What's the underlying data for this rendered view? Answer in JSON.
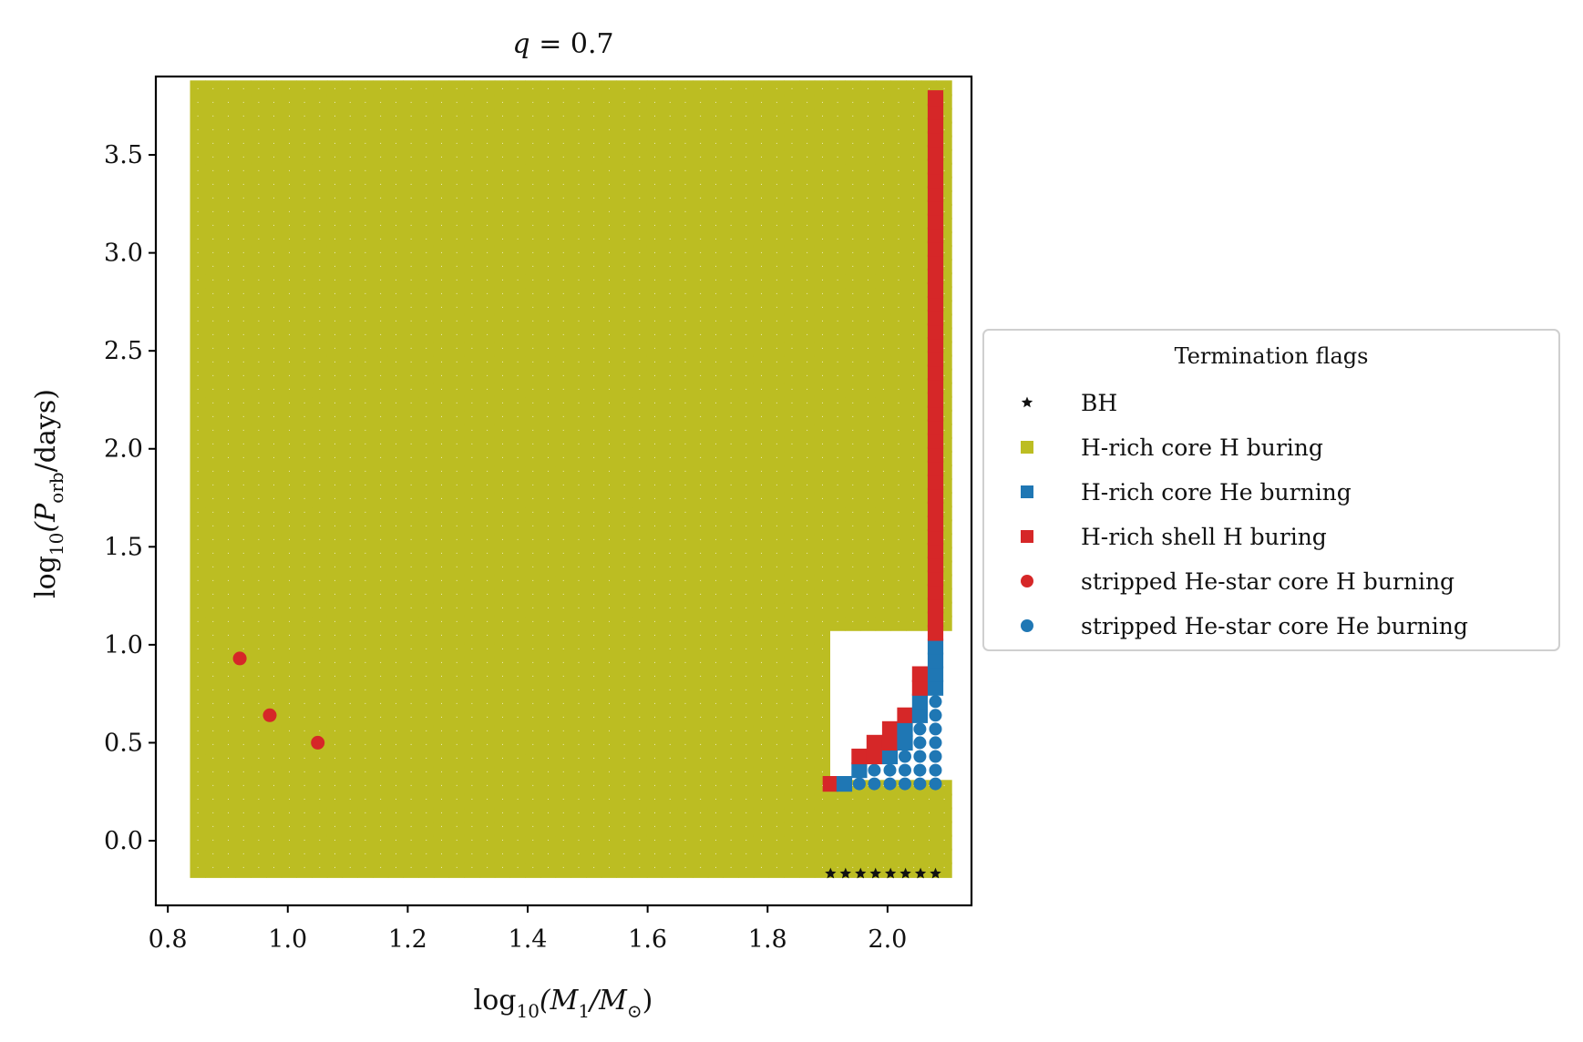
{
  "chart_data": {
    "type": "scatter",
    "title_prefix": "q",
    "title_value": "= 0.7",
    "xlabel_text": "log",
    "xlabel_sub": "10",
    "xlabel_rest": "(M",
    "xlabel_sub2": "1",
    "xlabel_rest2": "/M",
    "xlabel_sub3": "⊙",
    "xlabel_close": ")",
    "ylabel_text": "log",
    "ylabel_sub": "10",
    "ylabel_rest": "(P",
    "ylabel_sub2": "orb",
    "ylabel_close": "/days)",
    "xlim": [
      0.78,
      2.14
    ],
    "ylim": [
      -0.33,
      3.9
    ],
    "xticks": [
      0.8,
      1.0,
      1.2,
      1.4,
      1.6,
      1.8,
      2.0
    ],
    "xtick_labels": [
      "0.8",
      "1.0",
      "1.2",
      "1.4",
      "1.6",
      "1.8",
      "2.0"
    ],
    "yticks": [
      0.0,
      0.5,
      1.0,
      1.5,
      2.0,
      2.5,
      3.0,
      3.5
    ],
    "ytick_labels": [
      "0.0",
      "0.5",
      "1.0",
      "1.5",
      "2.0",
      "2.5",
      "3.0",
      "3.5"
    ],
    "grid_x": {
      "start": 0.85,
      "step": 0.0254,
      "count": 50
    },
    "grid_y": {
      "start": -0.15,
      "step": 0.07,
      "count": 58
    },
    "legend": {
      "title": "Termination flags",
      "placement": "center-right, outside axes",
      "entries": [
        {
          "label": "BH",
          "marker": "star",
          "color": "#111111"
        },
        {
          "label": "H-rich core H buring",
          "marker": "square",
          "color": "#bcbd22"
        },
        {
          "label": "H-rich core He burning",
          "marker": "square",
          "color": "#1f77b4"
        },
        {
          "label": "H-rich shell H buring",
          "marker": "square",
          "color": "#d62728"
        },
        {
          "label": "stripped He-star core H burning",
          "marker": "circle",
          "color": "#d62728"
        },
        {
          "label": "stripped He-star core He burning",
          "marker": "circle",
          "color": "#1f77b4"
        }
      ]
    },
    "special_series": {
      "bh_stars": {
        "x_range": [
          1.905,
          2.08
        ],
        "y": -0.14
      },
      "stripped_h_circles": [
        {
          "x": 0.92,
          "y": 0.93
        },
        {
          "x": 0.97,
          "y": 0.64
        },
        {
          "x": 1.05,
          "y": 0.5
        }
      ],
      "notes": "Grid of H-rich core H burning squares; lower-right corner contains H-rich shell H burning (red squares), core He burning (blue squares / circles) and BH (stars)."
    }
  }
}
